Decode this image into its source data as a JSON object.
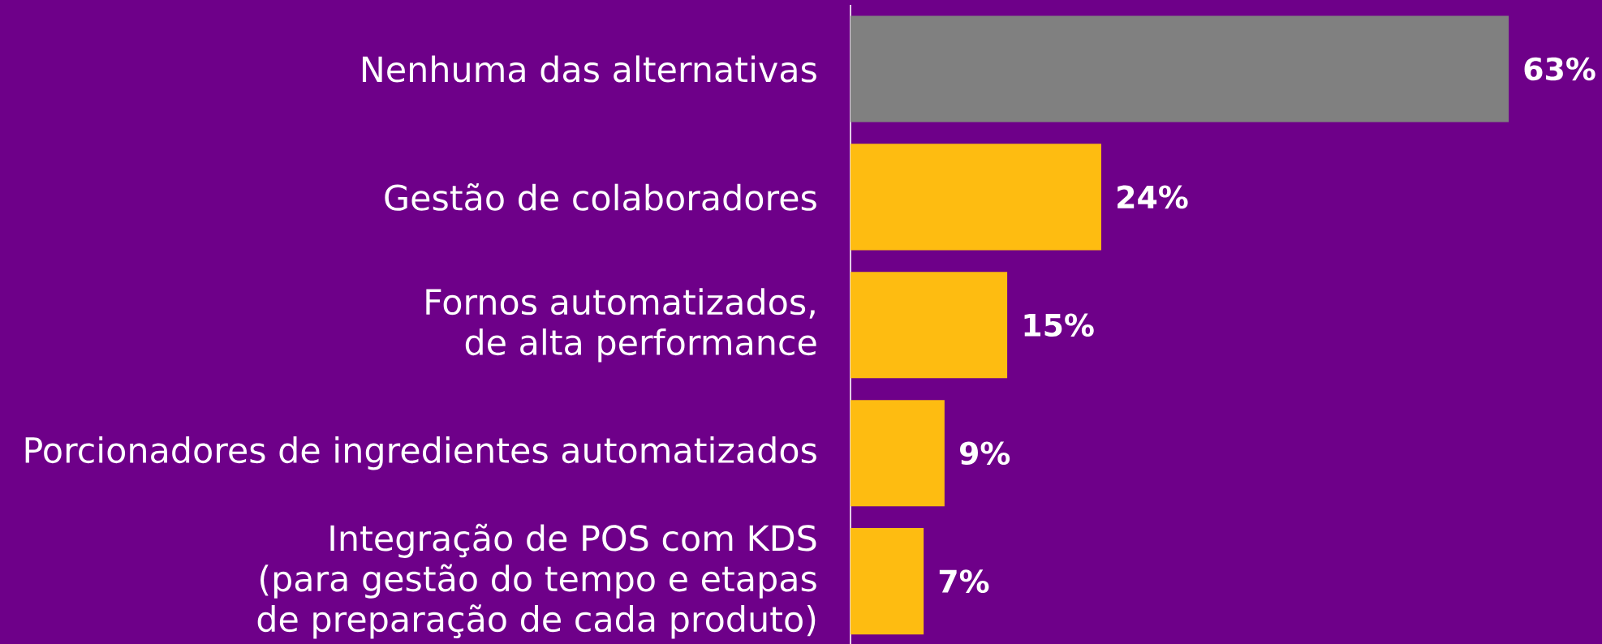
{
  "chart_data": {
    "type": "bar",
    "orientation": "horizontal",
    "categories": [
      "Nenhuma das alternativas",
      "Gestão de colaboradores",
      "Fornos automatizados, de alta performance",
      "Porcionadores de ingredientes automatizados",
      "Integração de POS com KDS (para gestão do tempo e etapas de preparação de cada produto)"
    ],
    "values": [
      63,
      24,
      15,
      9,
      7
    ],
    "colors": [
      "#808080",
      "#febc11",
      "#febc11",
      "#febc11",
      "#febc11"
    ],
    "value_labels": [
      "63%",
      "24%",
      "15%",
      "9%",
      "7%"
    ],
    "tick_labels": "y"
  }
}
